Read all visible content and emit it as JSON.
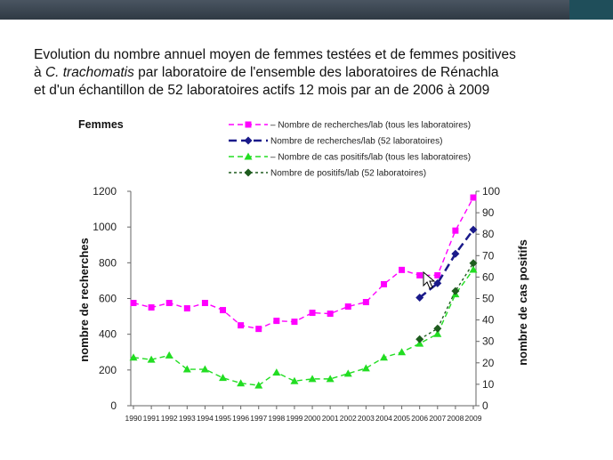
{
  "slide": {
    "title_line1": "Evolution du nombre annuel moyen de femmes testées et de femmes positives",
    "title_line2_prefix": "à ",
    "title_line2_italic": "C. trachomatis",
    "title_line2_suffix": " par laboratoire  de l'ensemble des laboratoires de Rénachla",
    "title_line3": " et d'un échantillon de 52 laboratoires actifs 12 mois par an de 2006 à  2009"
  },
  "chart_data": {
    "type": "line",
    "title": "Femmes",
    "x": [
      "1990",
      "1991",
      "1992",
      "1993",
      "1994",
      "1995",
      "1996",
      "1997",
      "1998",
      "1999",
      "2000",
      "2001",
      "2002",
      "2003",
      "2004",
      "2005",
      "2006",
      "2007",
      "2008",
      "2009"
    ],
    "ylabel": "nombre de recherches",
    "ylabel_right": "nombre de cas positifs",
    "ylim": [
      0,
      1200
    ],
    "ylim_right": [
      0,
      100
    ],
    "yticks": [
      "0",
      "200",
      "400",
      "600",
      "800",
      "1000",
      "1200"
    ],
    "yticks_right": [
      "0",
      "10",
      "20",
      "30",
      "40",
      "50",
      "60",
      "70",
      "80",
      "90",
      "100"
    ],
    "legend_position": "top",
    "series": [
      {
        "name": "Nombre de recherches/lab (tous les laboratoires)",
        "axis": "left",
        "color": "#ff00ff",
        "marker": "square",
        "dash": "6,4",
        "values": [
          575,
          550,
          575,
          545,
          575,
          535,
          450,
          430,
          475,
          470,
          520,
          515,
          555,
          580,
          680,
          760,
          730,
          730,
          980,
          1165
        ]
      },
      {
        "name": "Nombre de recherches/lab (52 laboratoires)",
        "axis": "left",
        "color": "#1a1a8a",
        "marker": "diamond",
        "dash": "9,5",
        "values": [
          null,
          null,
          null,
          null,
          null,
          null,
          null,
          null,
          null,
          null,
          null,
          null,
          null,
          null,
          null,
          null,
          605,
          685,
          850,
          985
        ]
      },
      {
        "name": "Nombre de cas positifs/lab (tous les laboratoires)",
        "axis": "right",
        "color": "#22dd22",
        "marker": "triangle",
        "dash": "6,4",
        "values": [
          22.5,
          21.5,
          23.5,
          17,
          17,
          13,
          10.5,
          9.5,
          15.5,
          11.5,
          12.5,
          12.5,
          15,
          17.5,
          22.5,
          25,
          29,
          33.5,
          52,
          63.5
        ]
      },
      {
        "name": "Nombre de positifs/lab (52 laboratoires)",
        "axis": "right",
        "color": "#1e5c1e",
        "marker": "diamond",
        "dash": "3,3",
        "values": [
          null,
          null,
          null,
          null,
          null,
          null,
          null,
          null,
          null,
          null,
          null,
          null,
          null,
          null,
          null,
          null,
          31,
          36,
          53.5,
          66.5
        ]
      }
    ]
  }
}
